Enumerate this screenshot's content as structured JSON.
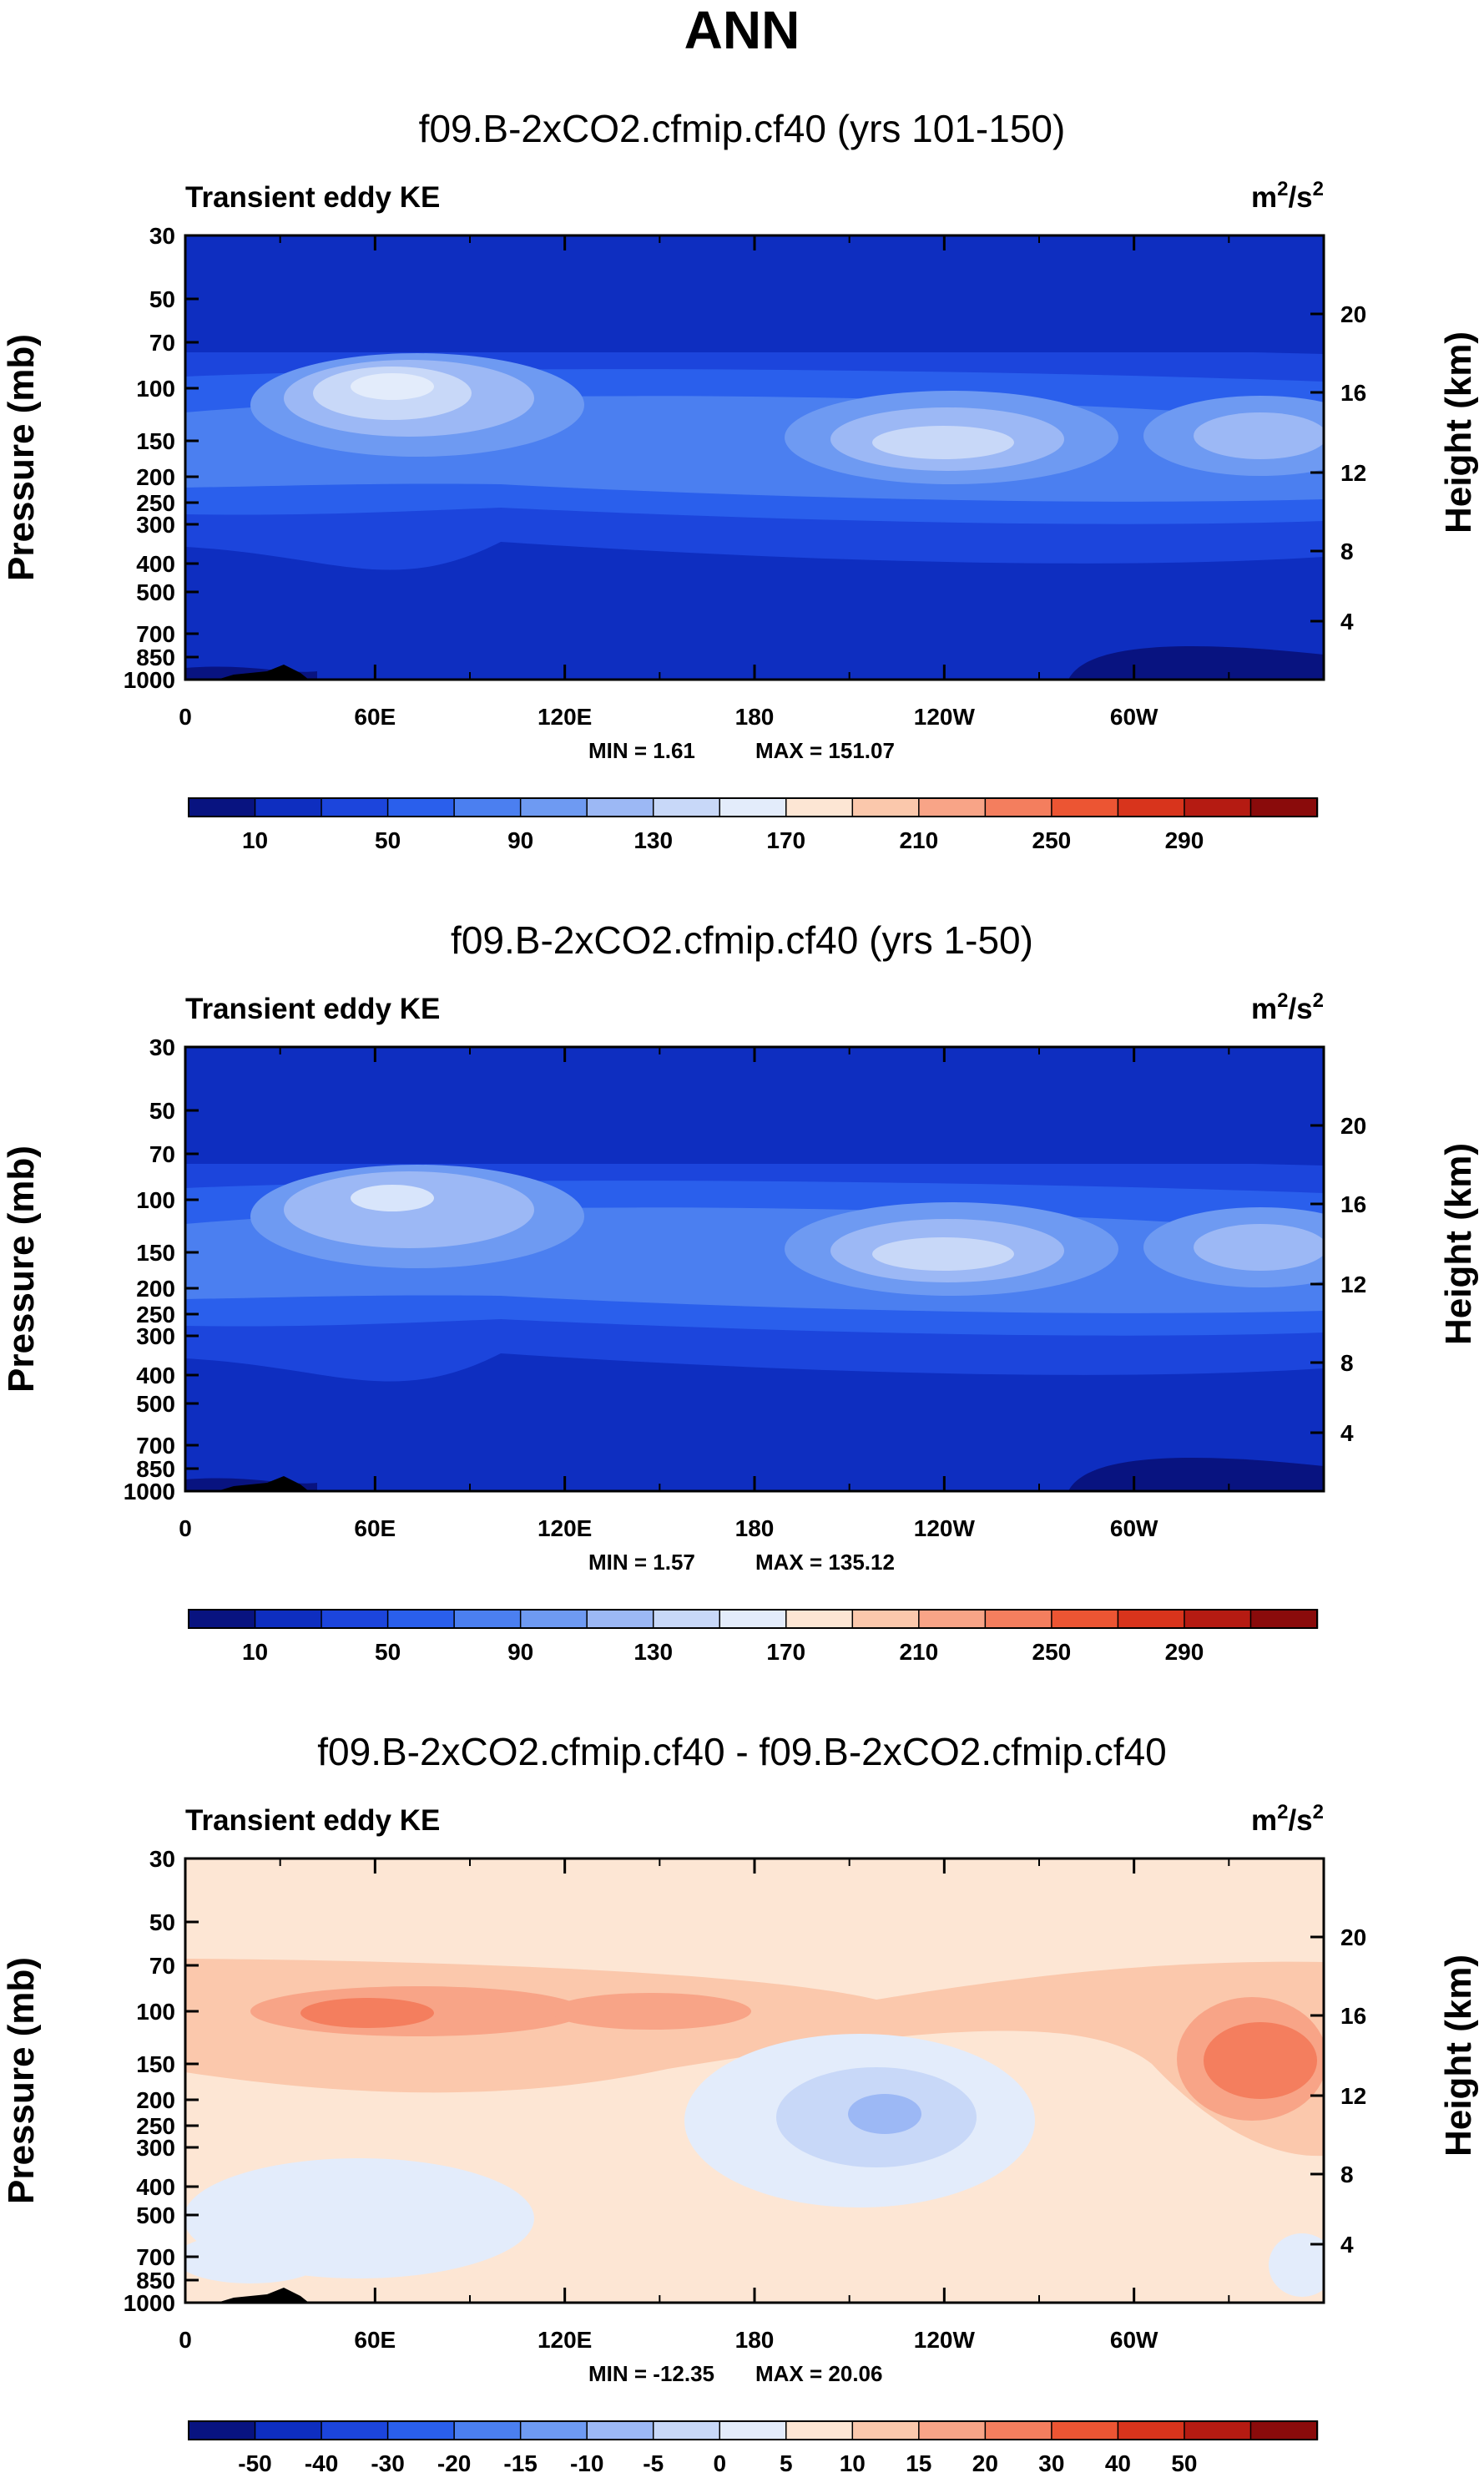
{
  "figure": {
    "title": "ANN"
  },
  "chart_data": [
    {
      "type": "heatmap",
      "title": "f09.B-2xCO2.cfmip.cf40 (yrs 101-150)",
      "variable": "Transient eddy KE",
      "units_base": "m",
      "units_exp1": "2",
      "units_mid": "/s",
      "units_exp2": "2",
      "xlabel": "",
      "ylabel": "Pressure (mb)",
      "ylabel_right": "Height (km)",
      "x_ticks": [
        "0",
        "60E",
        "120E",
        "180",
        "120W",
        "60W"
      ],
      "y_ticks": [
        "30",
        "50",
        "70",
        "100",
        "150",
        "200",
        "250",
        "300",
        "400",
        "500",
        "700",
        "850",
        "1000"
      ],
      "y_ticks_right": [
        "20",
        "16",
        "12",
        "8",
        "4"
      ],
      "min_label": "MIN =   1.61",
      "max_label": "MAX = 151.07",
      "min": 1.61,
      "max": 151.07,
      "levels": [
        10,
        30,
        50,
        70,
        90,
        110,
        130,
        150,
        170,
        190,
        210,
        230,
        250,
        270,
        290
      ],
      "colorbar_labels": [
        "10",
        "50",
        "90",
        "130",
        "170",
        "210",
        "250",
        "290"
      ],
      "colors": [
        "#081380",
        "#0e2ec0",
        "#1c45dc",
        "#2a5fec",
        "#4b7ff0",
        "#6e9af2",
        "#9cb8f5",
        "#c8d8f8",
        "#e3ecfb",
        "#fde6d4",
        "#fbc8ac",
        "#f8a487",
        "#f47e5e",
        "#ec5533",
        "#d8341c",
        "#b51b12",
        "#8a0b0b"
      ]
    },
    {
      "type": "heatmap",
      "title": "f09.B-2xCO2.cfmip.cf40 (yrs 1-50)",
      "variable": "Transient eddy KE",
      "units_base": "m",
      "units_exp1": "2",
      "units_mid": "/s",
      "units_exp2": "2",
      "xlabel": "",
      "ylabel": "Pressure (mb)",
      "ylabel_right": "Height (km)",
      "x_ticks": [
        "0",
        "60E",
        "120E",
        "180",
        "120W",
        "60W"
      ],
      "y_ticks": [
        "30",
        "50",
        "70",
        "100",
        "150",
        "200",
        "250",
        "300",
        "400",
        "500",
        "700",
        "850",
        "1000"
      ],
      "y_ticks_right": [
        "20",
        "16",
        "12",
        "8",
        "4"
      ],
      "min_label": "MIN =   1.57",
      "max_label": "MAX = 135.12",
      "min": 1.57,
      "max": 135.12,
      "levels": [
        10,
        30,
        50,
        70,
        90,
        110,
        130,
        150,
        170,
        190,
        210,
        230,
        250,
        270,
        290
      ],
      "colorbar_labels": [
        "10",
        "50",
        "90",
        "130",
        "170",
        "210",
        "250",
        "290"
      ],
      "colors": [
        "#081380",
        "#0e2ec0",
        "#1c45dc",
        "#2a5fec",
        "#4b7ff0",
        "#6e9af2",
        "#9cb8f5",
        "#c8d8f8",
        "#e3ecfb",
        "#fde6d4",
        "#fbc8ac",
        "#f8a487",
        "#f47e5e",
        "#ec5533",
        "#d8341c",
        "#b51b12",
        "#8a0b0b"
      ]
    },
    {
      "type": "heatmap",
      "title": "f09.B-2xCO2.cfmip.cf40 - f09.B-2xCO2.cfmip.cf40",
      "variable": "Transient eddy KE",
      "units_base": "m",
      "units_exp1": "2",
      "units_mid": "/s",
      "units_exp2": "2",
      "xlabel": "",
      "ylabel": "Pressure (mb)",
      "ylabel_right": "Height (km)",
      "x_ticks": [
        "0",
        "60E",
        "120E",
        "180",
        "120W",
        "60W"
      ],
      "y_ticks": [
        "30",
        "50",
        "70",
        "100",
        "150",
        "200",
        "250",
        "300",
        "400",
        "500",
        "700",
        "850",
        "1000"
      ],
      "y_ticks_right": [
        "20",
        "16",
        "12",
        "8",
        "4"
      ],
      "min_label": "MIN = -12.35",
      "max_label": "MAX =  20.06",
      "min": -12.35,
      "max": 20.06,
      "levels": [
        -50,
        -40,
        -30,
        -20,
        -15,
        -10,
        -5,
        0,
        5,
        10,
        15,
        20,
        30,
        40,
        50
      ],
      "colorbar_labels": [
        "-50",
        "-40",
        "-30",
        "-20",
        "-15",
        "-10",
        "-5",
        "0",
        "5",
        "10",
        "15",
        "20",
        "30",
        "40",
        "50"
      ],
      "colors": [
        "#081380",
        "#0e2ec0",
        "#1c45dc",
        "#2a5fec",
        "#4b7ff0",
        "#6e9af2",
        "#9cb8f5",
        "#c8d8f8",
        "#e3ecfb",
        "#fde6d4",
        "#fbc8ac",
        "#f8a487",
        "#f47e5e",
        "#ec5533",
        "#d8341c",
        "#b51b12",
        "#8a0b0b"
      ]
    }
  ]
}
